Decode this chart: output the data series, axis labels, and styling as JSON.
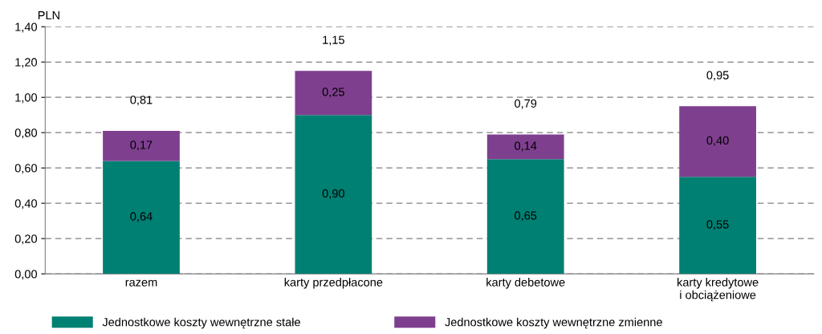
{
  "chart_data": {
    "type": "bar",
    "stacked": true,
    "ylabel": "PLN",
    "categories": [
      "razem",
      "karty przedpłacone",
      "karty debetowe",
      "karty kredytowe\ni obciążeniowe"
    ],
    "series": [
      {
        "name": "Jednostkowe koszty wewnętrzne stałe",
        "color": "#007f73",
        "values": [
          0.64,
          0.9,
          0.65,
          0.55
        ],
        "value_labels": [
          "0,64",
          "0,90",
          "0,65",
          "0,55"
        ]
      },
      {
        "name": "Jednostkowe koszty wewnętrzne zmienne",
        "color": "#7f3f8f",
        "values": [
          0.17,
          0.25,
          0.14,
          0.4
        ],
        "value_labels": [
          "0,17",
          "0,25",
          "0,14",
          "0,40"
        ]
      }
    ],
    "totals": [
      "0,81",
      "1,15",
      "0,79",
      "0,95"
    ],
    "ylim": [
      0,
      1.4
    ],
    "yticks": [
      {
        "value": 0,
        "label": "0,00"
      },
      {
        "value": 0.2,
        "label": "0,20"
      },
      {
        "value": 0.4,
        "label": "0,40"
      },
      {
        "value": 0.6,
        "label": "0,60"
      },
      {
        "value": 0.8,
        "label": "0,80"
      },
      {
        "value": 1.0,
        "label": "1,00"
      },
      {
        "value": 1.2,
        "label": "1,20"
      },
      {
        "value": 1.4,
        "label": "1,40"
      }
    ],
    "grid": "y",
    "line_style": "dashed",
    "legend": "bottom"
  }
}
